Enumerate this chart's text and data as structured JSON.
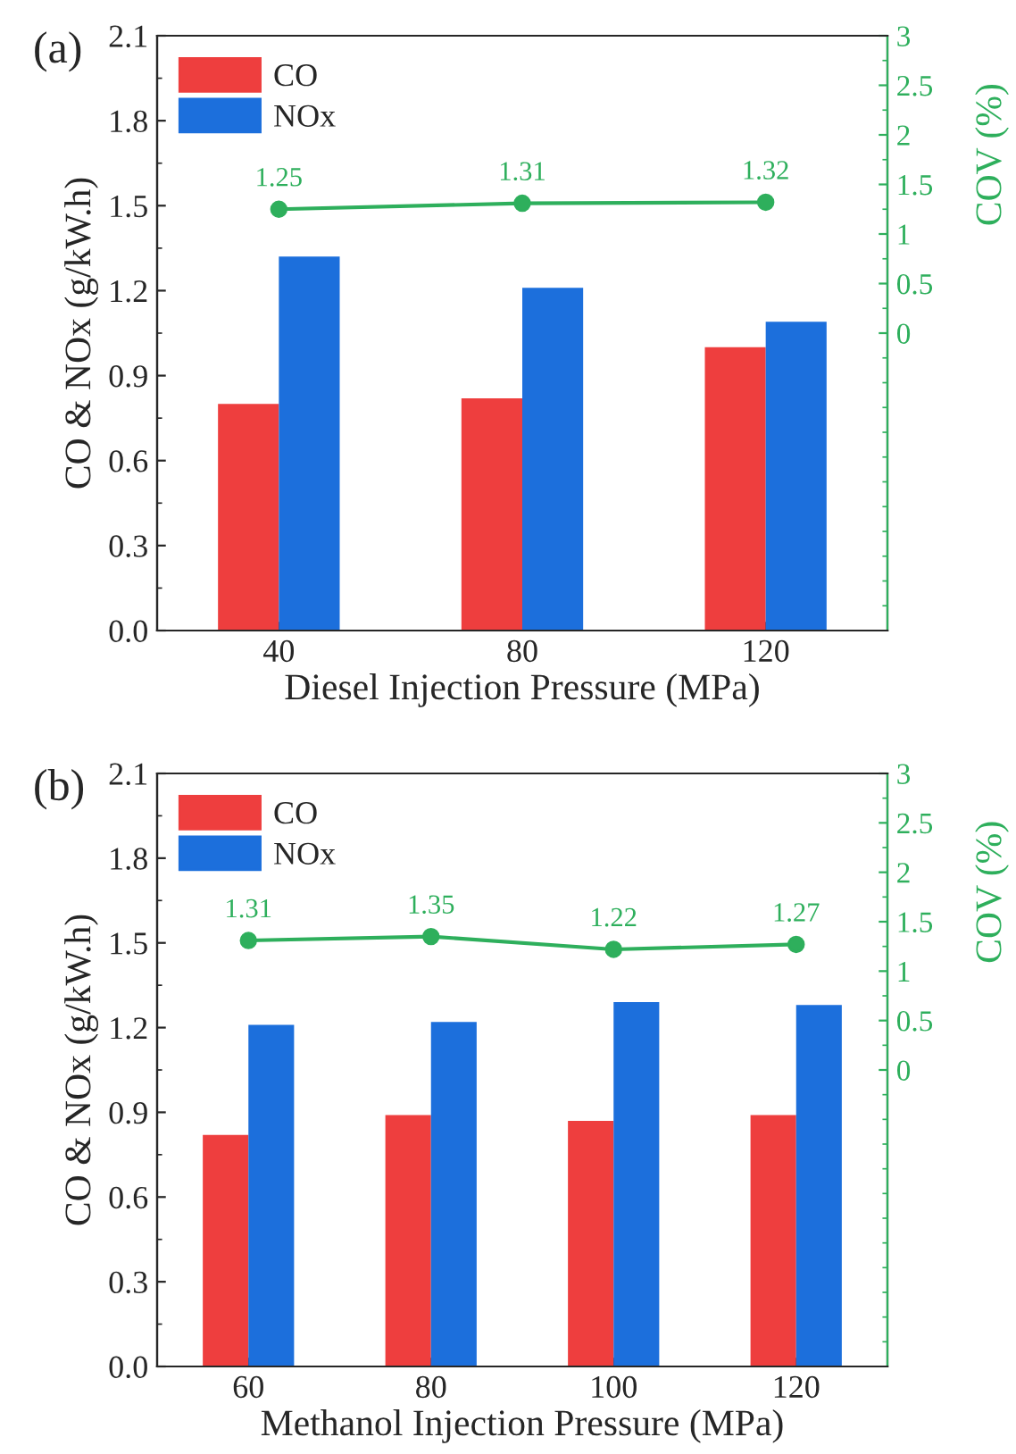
{
  "chart_data": [
    {
      "type": "bar",
      "title": "(a)",
      "xlabel": "Diesel Injection Pressure (MPa)",
      "ylabel": "CO & NOx (g/kW.h)",
      "y2label": "COV (%)",
      "categories": [
        "40",
        "80",
        "120"
      ],
      "series": [
        {
          "name": "CO",
          "color": "#ee3e3e",
          "values": [
            0.8,
            0.82,
            1.0
          ]
        },
        {
          "name": "NOx",
          "color": "#1c6fdc",
          "values": [
            1.32,
            1.21,
            1.09
          ]
        },
        {
          "type": "line",
          "axis": "y2",
          "color": "#2eaf5c",
          "values": [
            1.25,
            1.31,
            1.32
          ],
          "value_labels": [
            "1.25",
            "1.31",
            "1.32"
          ]
        }
      ],
      "ylim": [
        0,
        2.1
      ],
      "yticks": [
        {
          "value": 0,
          "label": "0.0"
        },
        0.3,
        0.6,
        0.9,
        1.2,
        1.5,
        1.8,
        2.1
      ],
      "y2lim": [
        -3,
        3
      ],
      "y2ticks": [
        0,
        0.5,
        1,
        1.5,
        2,
        2.5,
        3
      ],
      "marker": "circle",
      "legend": "top left",
      "grid": false
    },
    {
      "type": "bar",
      "title": "(b)",
      "xlabel": "Methanol Injection Pressure (MPa)",
      "ylabel": "CO & NOx (g/kW.h)",
      "y2label": "COV (%)",
      "categories": [
        "60",
        "80",
        "100",
        "120"
      ],
      "series": [
        {
          "name": "CO",
          "color": "#ee3e3e",
          "values": [
            0.82,
            0.89,
            0.87,
            0.89
          ]
        },
        {
          "name": "NOx",
          "color": "#1c6fdc",
          "values": [
            1.21,
            1.22,
            1.29,
            1.28
          ]
        },
        {
          "type": "line",
          "axis": "y2",
          "color": "#2eaf5c",
          "values": [
            1.31,
            1.35,
            1.22,
            1.27
          ],
          "value_labels": [
            "1.31",
            "1.35",
            "1.22",
            "1.27"
          ]
        }
      ],
      "ylim": [
        0,
        2.1
      ],
      "yticks": [
        {
          "value": 0,
          "label": "0.0"
        },
        0.3,
        0.6,
        0.9,
        1.2,
        1.5,
        1.8,
        2.1
      ],
      "y2lim": [
        -3,
        3
      ],
      "y2ticks": [
        0,
        0.5,
        1,
        1.5,
        2,
        2.5,
        3
      ],
      "marker": "circle",
      "legend": "top left",
      "grid": false
    }
  ]
}
